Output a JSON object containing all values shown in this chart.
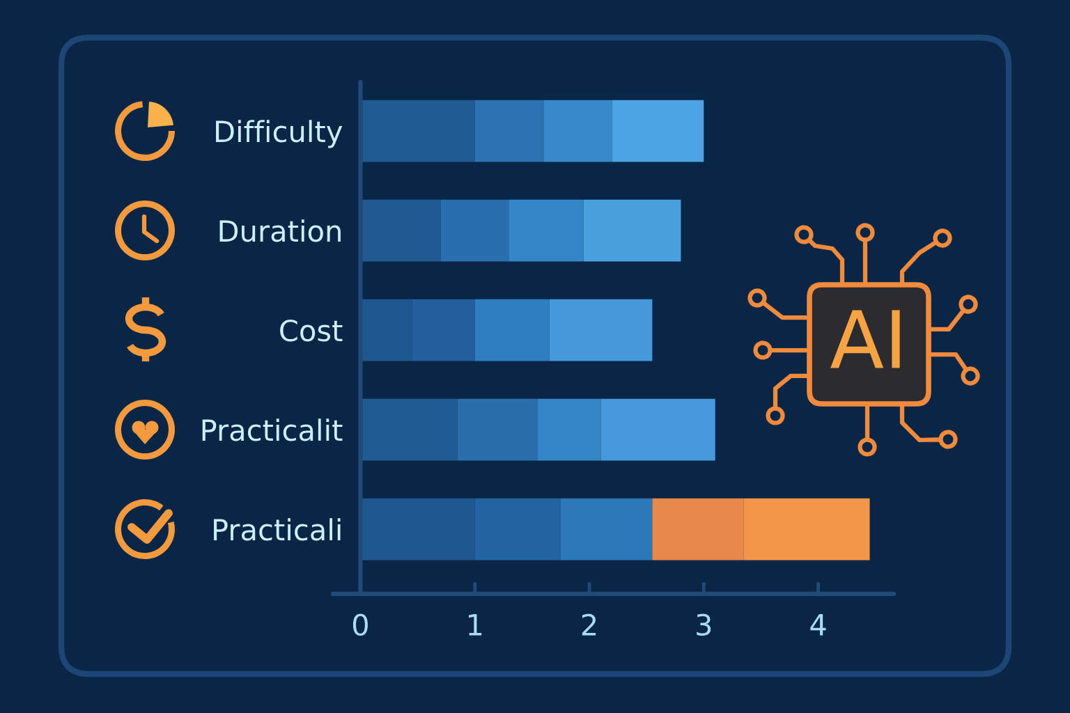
{
  "chart_data": {
    "type": "bar",
    "orientation": "horizontal",
    "stacked": true,
    "categories": [
      "Difficulty",
      "Duration",
      "Cost",
      "Practicalit",
      "Practicali"
    ],
    "series": [
      {
        "values": [
          1.0,
          0.7,
          0.45,
          0.85,
          1.0
        ],
        "colors": [
          "#215b93",
          "#205a91",
          "#1f5890",
          "#215b93",
          "#1f5891"
        ]
      },
      {
        "values": [
          0.6,
          0.6,
          0.55,
          0.7,
          0.75
        ],
        "colors": [
          "#2a72b0",
          "#2a6fad",
          "#225f9c",
          "#2a6eab",
          "#2264a2"
        ]
      },
      {
        "values": [
          0.6,
          0.65,
          0.65,
          0.55,
          0.8
        ],
        "colors": [
          "#3789c9",
          "#3586c6",
          "#2f7fc0",
          "#3586c6",
          "#2d78b8"
        ]
      },
      {
        "values": [
          0.8,
          0.85,
          0.9,
          1.0,
          0.8
        ],
        "colors": [
          "#4ba4e1",
          "#4aa0dd",
          "#4599d9",
          "#4699dc",
          "#e8894c"
        ]
      },
      {
        "values": [
          null,
          null,
          null,
          null,
          1.1
        ],
        "colors": [
          null,
          null,
          null,
          null,
          "#f3964a"
        ]
      }
    ],
    "xlim": [
      -0.24,
      4.66
    ],
    "xticks": [
      0,
      1,
      2,
      3,
      4
    ],
    "annotations": [
      "AI"
    ]
  }
}
